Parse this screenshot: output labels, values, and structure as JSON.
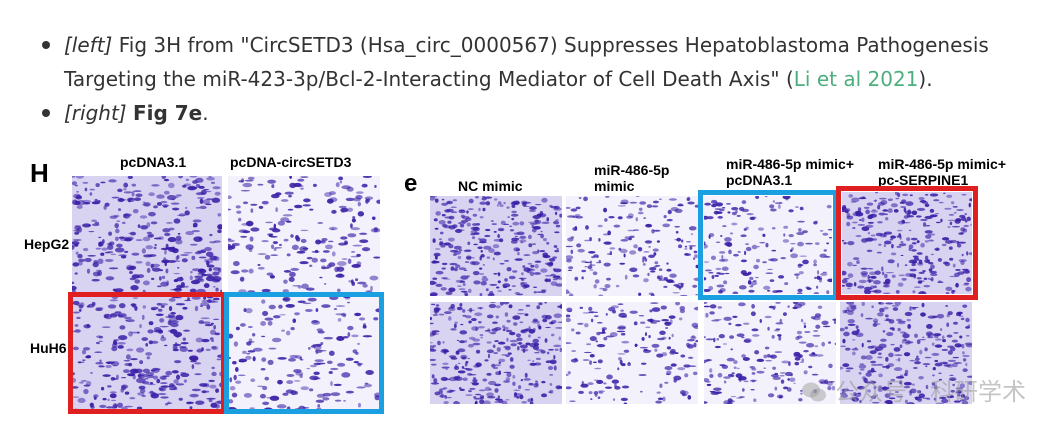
{
  "bullets": [
    {
      "tag": "[left]",
      "text_before": " Fig 3H from \"CircSETD3 (Hsa_circ_0000567) Suppresses Hepatoblastoma Pathogenesis Targeting the miR-423-3p/Bcl-2-Interacting Mediator of Cell Death Axis\" (",
      "link": "Li et al 2021",
      "text_after": ")."
    },
    {
      "tag": "[right]",
      "bold": "Fig 7e",
      "text_after": "."
    }
  ],
  "figure_left": {
    "panel_letter": "H",
    "columns": [
      "pcDNA3.1",
      "pcDNA-circSETD3"
    ],
    "rows": [
      "HepG2",
      "HuH6"
    ]
  },
  "figure_right": {
    "panel_letter": "e",
    "columns": [
      "NC mimic",
      [
        "miR-486-5p",
        "mimic"
      ],
      [
        "miR-486-5p mimic+",
        "pcDNA3.1"
      ],
      [
        "miR-486-5p mimic+",
        "pc-SERPINE1"
      ]
    ]
  },
  "colors": {
    "stain": "#3a1fa6",
    "red_box": "#e02020",
    "blue_box": "#1aa0e0",
    "link": "#4caf7d"
  },
  "watermark": "公众号 · 科研学术",
  "icons": [
    "wechat-icon"
  ]
}
